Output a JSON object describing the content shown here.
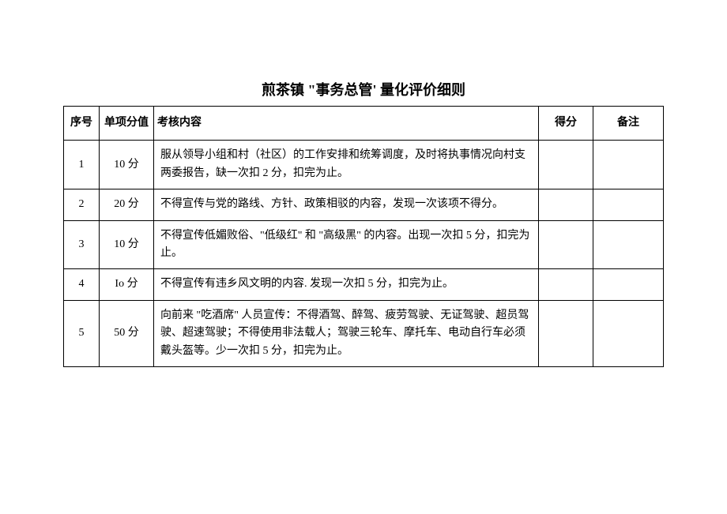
{
  "title": "煎茶镇 \"事务总管' 量化评价细则",
  "headers": {
    "seq": "序号",
    "single_score": "单项分值",
    "content": "考核内容",
    "points": "得分",
    "note": "备注"
  },
  "rows": [
    {
      "seq": "1",
      "score": "10 分",
      "content": "服从领导小组和村（社区）的工作安排和统筹调度，及时将执事情况向村支两委报告，缺一次扣 2 分，扣完为止。",
      "points": "",
      "note": ""
    },
    {
      "seq": "2",
      "score": "20 分",
      "content": "不得宣传与党的路线、方针、政策相驳的内容，发现一次该项不得分。",
      "points": "",
      "note": ""
    },
    {
      "seq": "3",
      "score": "10 分",
      "content": "不得宣传低媚败俗、\"低级红\" 和 \"高级黑\" 的内容。出现一次扣 5 分，扣完为止。",
      "points": "",
      "note": ""
    },
    {
      "seq": "4",
      "score": "Io 分",
      "content": "不得宣传有违乡风文明的内容. 发现一次扣 5 分，扣完为止。",
      "points": "",
      "note": ""
    },
    {
      "seq": "5",
      "score": "50 分",
      "content": "向前来 \"吃酒席\" 人员宣传：不得酒驾、醉驾、疲劳驾驶、无证驾驶、超员驾驶、超速驾驶；不得使用非法载人；驾驶三轮车、摩托车、电动自行车必须戴头盔等。少一次扣 5 分，扣完为止。",
      "points": "",
      "note": ""
    }
  ]
}
